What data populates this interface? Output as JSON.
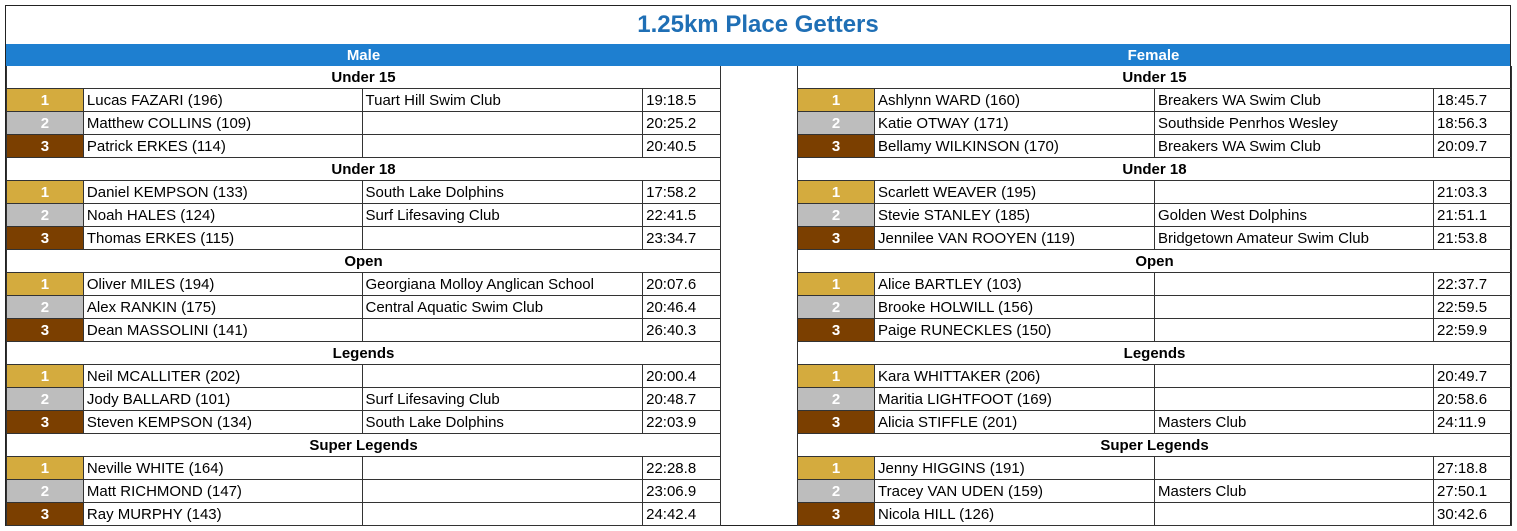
{
  "title": "1.25km Place Getters",
  "headers": {
    "male": "Male",
    "female": "Female"
  },
  "male": [
    {
      "group": "Under 15",
      "rows": [
        {
          "place": "1",
          "name": "Lucas FAZARI (196)",
          "club": "Tuart Hill Swim Club",
          "time": "19:18.5"
        },
        {
          "place": "2",
          "name": "Matthew COLLINS (109)",
          "club": "",
          "time": "20:25.2"
        },
        {
          "place": "3",
          "name": "Patrick ERKES (114)",
          "club": "",
          "time": "20:40.5"
        }
      ]
    },
    {
      "group": "Under 18",
      "rows": [
        {
          "place": "1",
          "name": "Daniel KEMPSON (133)",
          "club": "South Lake Dolphins",
          "time": "17:58.2"
        },
        {
          "place": "2",
          "name": "Noah HALES (124)",
          "club": "Surf Lifesaving Club",
          "time": "22:41.5"
        },
        {
          "place": "3",
          "name": "Thomas ERKES (115)",
          "club": "",
          "time": "23:34.7"
        }
      ]
    },
    {
      "group": "Open",
      "rows": [
        {
          "place": "1",
          "name": "Oliver MILES (194)",
          "club": "Georgiana Molloy Anglican School",
          "time": "20:07.6"
        },
        {
          "place": "2",
          "name": "Alex RANKIN (175)",
          "club": "Central Aquatic Swim Club",
          "time": "20:46.4"
        },
        {
          "place": "3",
          "name": "Dean MASSOLINI (141)",
          "club": "",
          "time": "26:40.3"
        }
      ]
    },
    {
      "group": "Legends",
      "rows": [
        {
          "place": "1",
          "name": "Neil MCALLITER (202)",
          "club": "",
          "time": "20:00.4"
        },
        {
          "place": "2",
          "name": "Jody BALLARD (101)",
          "club": "Surf Lifesaving Club",
          "time": "20:48.7"
        },
        {
          "place": "3",
          "name": "Steven KEMPSON (134)",
          "club": "South Lake Dolphins",
          "time": "22:03.9"
        }
      ]
    },
    {
      "group": "Super Legends",
      "rows": [
        {
          "place": "1",
          "name": "Neville WHITE (164)",
          "club": "",
          "time": "22:28.8"
        },
        {
          "place": "2",
          "name": "Matt RICHMOND (147)",
          "club": "",
          "time": "23:06.9"
        },
        {
          "place": "3",
          "name": "Ray MURPHY (143)",
          "club": "",
          "time": "24:42.4"
        }
      ]
    }
  ],
  "female": [
    {
      "group": "Under 15",
      "rows": [
        {
          "place": "1",
          "name": "Ashlynn WARD (160)",
          "club": "Breakers WA Swim Club",
          "time": "18:45.7"
        },
        {
          "place": "2",
          "name": "Katie OTWAY (171)",
          "club": "Southside Penrhos Wesley",
          "time": "18:56.3"
        },
        {
          "place": "3",
          "name": "Bellamy WILKINSON (170)",
          "club": "Breakers WA Swim Club",
          "time": "20:09.7"
        }
      ]
    },
    {
      "group": "Under 18",
      "rows": [
        {
          "place": "1",
          "name": "Scarlett WEAVER (195)",
          "club": "",
          "time": "21:03.3"
        },
        {
          "place": "2",
          "name": "Stevie STANLEY (185)",
          "club": "Golden West Dolphins",
          "time": "21:51.1"
        },
        {
          "place": "3",
          "name": "Jennilee VAN ROOYEN (119)",
          "club": "Bridgetown Amateur Swim Club",
          "time": "21:53.8"
        }
      ]
    },
    {
      "group": "Open",
      "rows": [
        {
          "place": "1",
          "name": "Alice BARTLEY (103)",
          "club": "",
          "time": "22:37.7"
        },
        {
          "place": "2",
          "name": "Brooke HOLWILL (156)",
          "club": "",
          "time": "22:59.5"
        },
        {
          "place": "3",
          "name": "Paige RUNECKLES (150)",
          "club": "",
          "time": "22:59.9"
        }
      ]
    },
    {
      "group": "Legends",
      "rows": [
        {
          "place": "1",
          "name": "Kara WHITTAKER (206)",
          "club": "",
          "time": "20:49.7"
        },
        {
          "place": "2",
          "name": "Maritia LIGHTFOOT (169)",
          "club": "",
          "time": "20:58.6"
        },
        {
          "place": "3",
          "name": "Alicia STIFFLE (201)",
          "club": "Masters Club",
          "time": "24:11.9"
        }
      ]
    },
    {
      "group": "Super Legends",
      "rows": [
        {
          "place": "1",
          "name": "Jenny HIGGINS (191)",
          "club": "",
          "time": "27:18.8"
        },
        {
          "place": "2",
          "name": "Tracey VAN UDEN (159)",
          "club": "Masters Club",
          "time": "27:50.1"
        },
        {
          "place": "3",
          "name": "Nicola HILL (126)",
          "club": "",
          "time": "30:42.6"
        }
      ]
    }
  ],
  "colors": {
    "title": "#1f6fb5",
    "header_bar": "#1e7fd0",
    "place_1": "#d4ab3e",
    "place_2": "#bdbdbd",
    "place_3": "#7b3f00"
  }
}
